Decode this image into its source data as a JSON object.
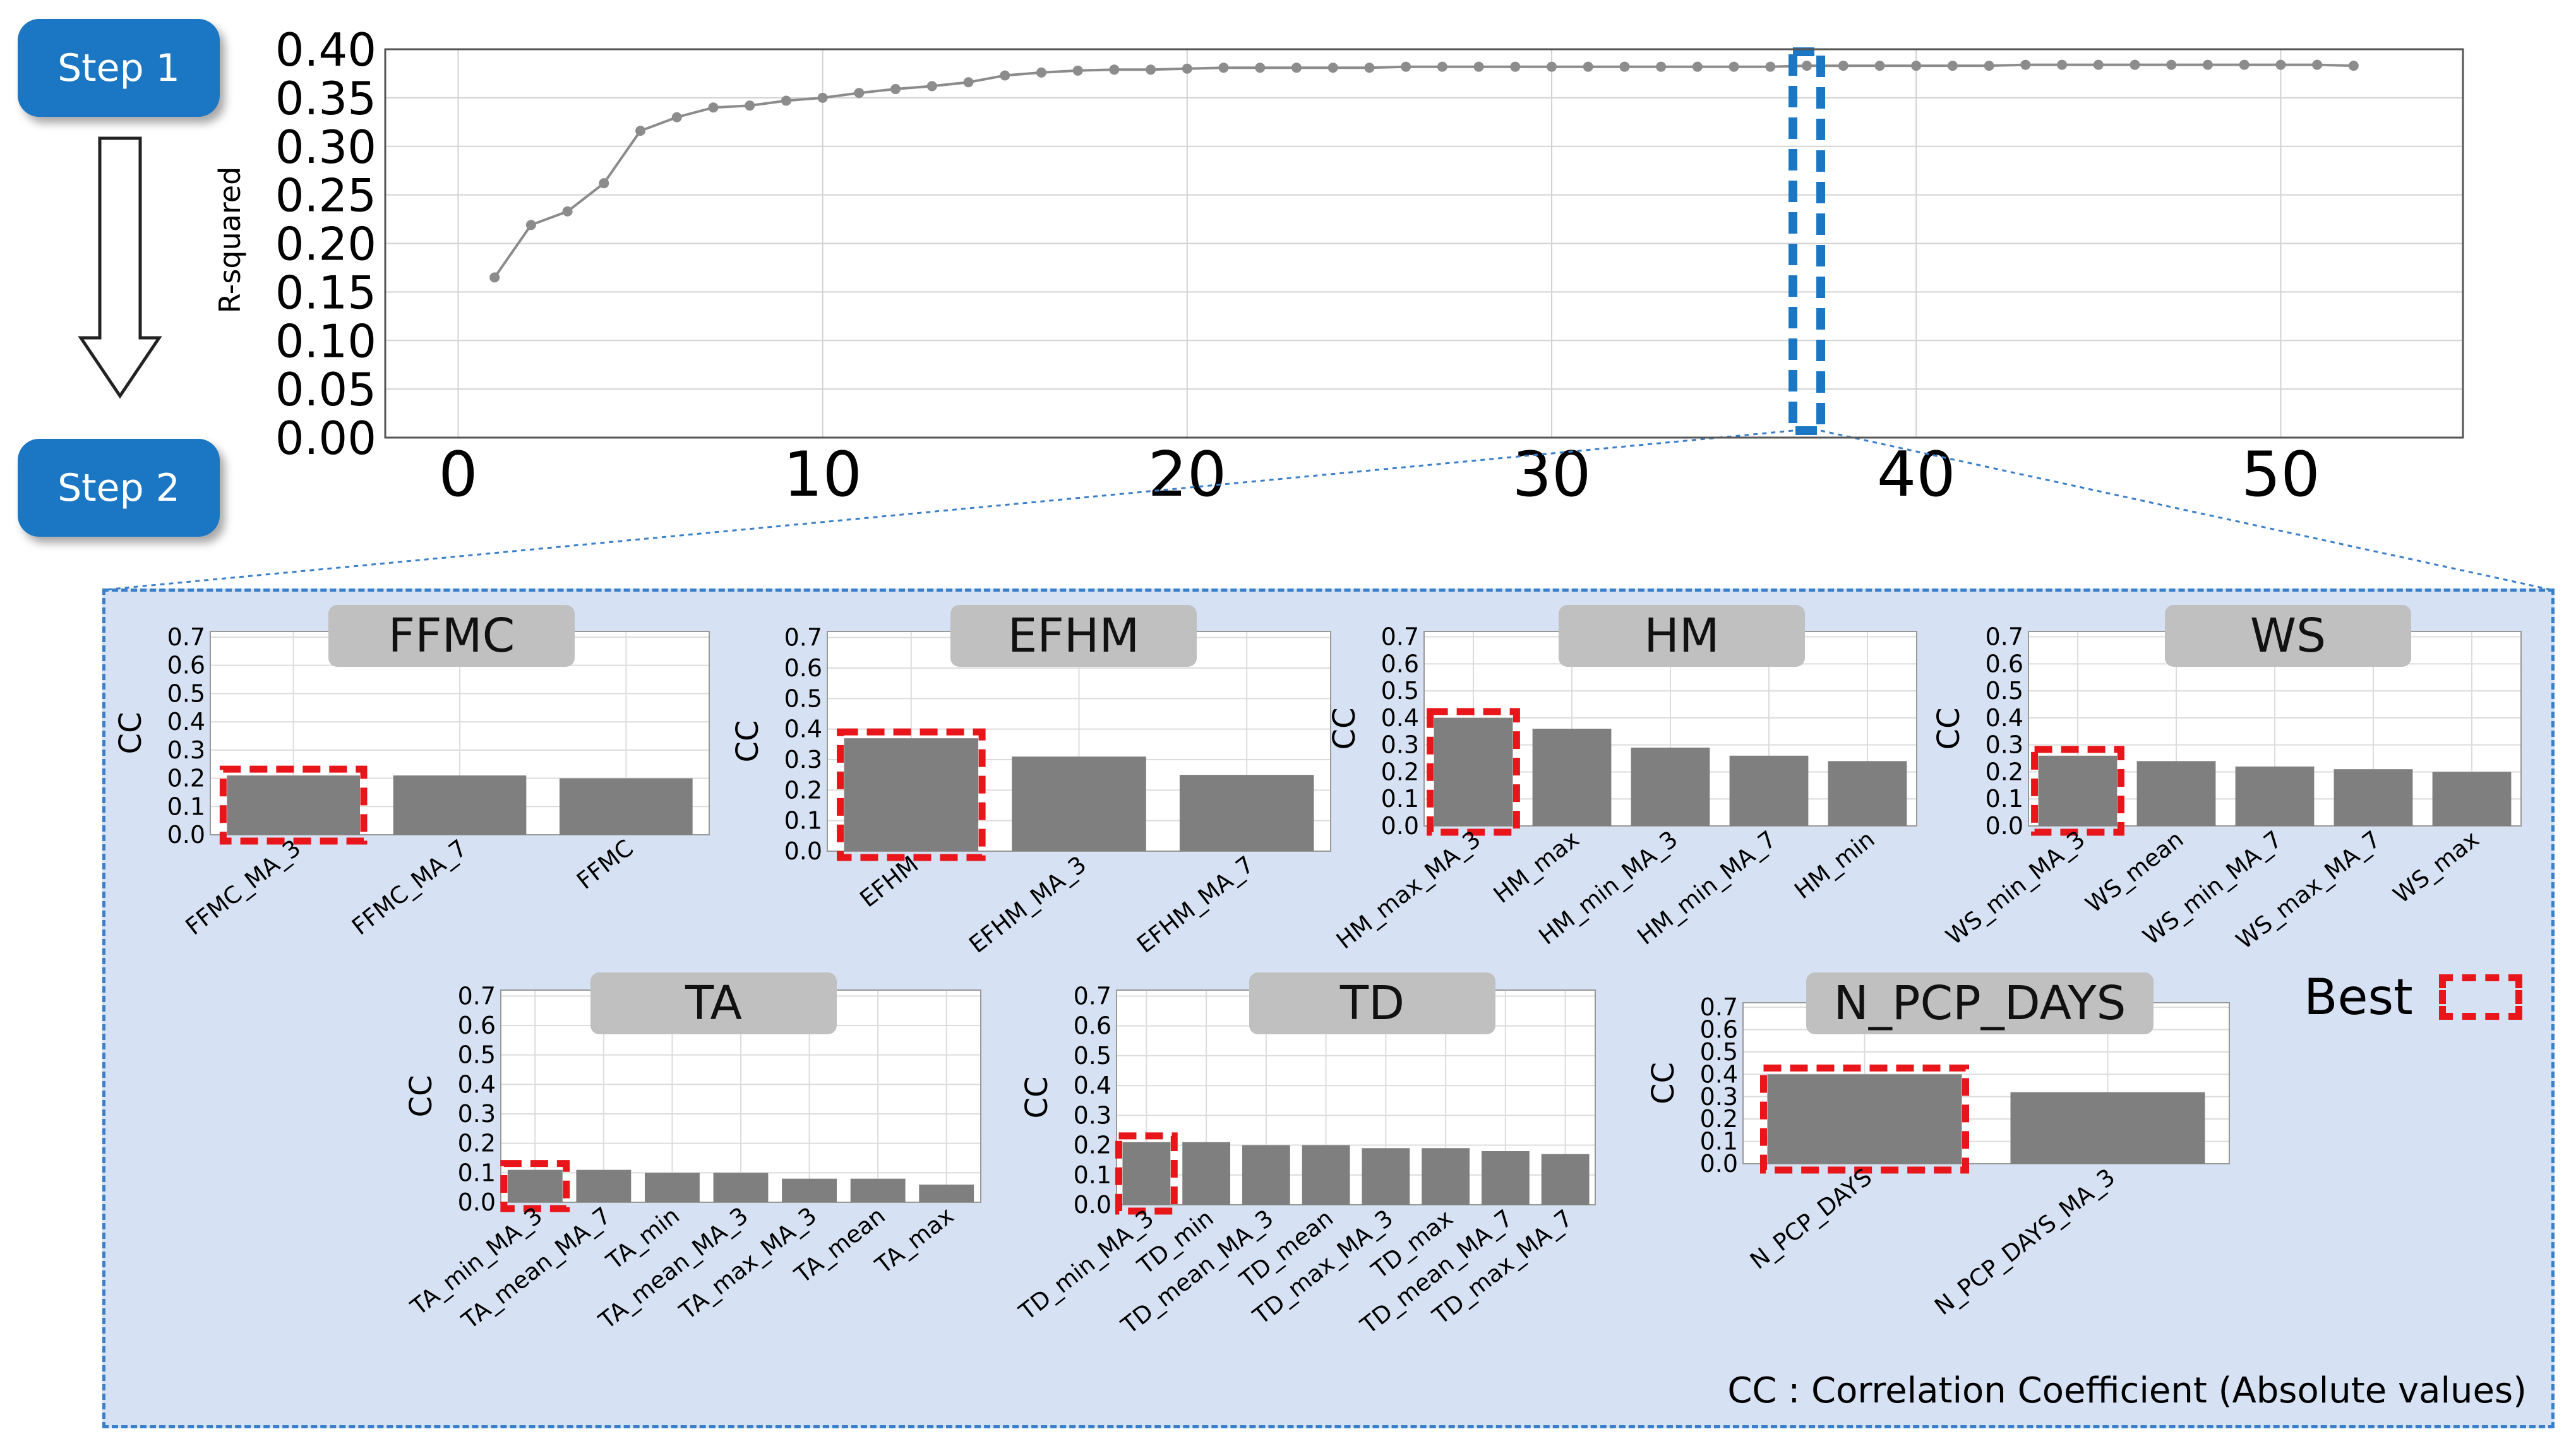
{
  "steps": {
    "step1": "Step 1",
    "step2": "Step 2"
  },
  "legend": {
    "best_label": "Best",
    "best_color": "#e8161b"
  },
  "note": "CC : Correlation Coefficient (Absolute values)",
  "colors": {
    "bar": "#7f7f7f",
    "line": "#8c8c8c",
    "step": "#1b76c4",
    "panel": "#d6e2f3",
    "highlight": "#1b76c4",
    "best": "#e8161b"
  },
  "chart_data": [
    {
      "type": "line",
      "ylabel": "R-squared",
      "xlim": [
        -2,
        55
      ],
      "ylim": [
        0,
        0.4
      ],
      "xticks": [
        0,
        10,
        20,
        30,
        40,
        50
      ],
      "yticks": [
        0.0,
        0.05,
        0.1,
        0.15,
        0.2,
        0.25,
        0.3,
        0.35,
        0.4
      ],
      "grid": true,
      "highlight_x": 37,
      "x": [
        1,
        2,
        3,
        4,
        5,
        6,
        7,
        8,
        9,
        10,
        11,
        12,
        13,
        14,
        15,
        16,
        17,
        18,
        19,
        20,
        21,
        22,
        23,
        24,
        25,
        26,
        27,
        28,
        29,
        30,
        31,
        32,
        33,
        34,
        35,
        36,
        37,
        38,
        39,
        40,
        41,
        42,
        43,
        44,
        45,
        46,
        47,
        48,
        49,
        50,
        51,
        52
      ],
      "y": [
        0.165,
        0.219,
        0.233,
        0.262,
        0.316,
        0.33,
        0.34,
        0.342,
        0.347,
        0.35,
        0.355,
        0.359,
        0.362,
        0.366,
        0.373,
        0.376,
        0.378,
        0.379,
        0.379,
        0.38,
        0.381,
        0.381,
        0.381,
        0.381,
        0.381,
        0.382,
        0.382,
        0.382,
        0.382,
        0.382,
        0.382,
        0.382,
        0.382,
        0.382,
        0.382,
        0.382,
        0.383,
        0.383,
        0.383,
        0.383,
        0.383,
        0.383,
        0.384,
        0.384,
        0.384,
        0.384,
        0.384,
        0.384,
        0.384,
        0.384,
        0.384,
        0.383
      ]
    },
    {
      "type": "bar",
      "title": "FFMC",
      "ylabel": "CC",
      "ylim": [
        0,
        0.7
      ],
      "categories": [
        "FFMC_MA_3",
        "FFMC_MA_7",
        "FFMC"
      ],
      "values": [
        0.21,
        0.21,
        0.2
      ],
      "best_index": 0
    },
    {
      "type": "bar",
      "title": "EFHM",
      "ylabel": "CC",
      "ylim": [
        0,
        0.7
      ],
      "categories": [
        "EFHM",
        "EFHM_MA_3",
        "EFHM_MA_7"
      ],
      "values": [
        0.37,
        0.31,
        0.25
      ],
      "best_index": 0
    },
    {
      "type": "bar",
      "title": "HM",
      "ylabel": "CC",
      "ylim": [
        0,
        0.7
      ],
      "categories": [
        "HM_max_MA_3",
        "HM_max",
        "HM_min_MA_3",
        "HM_min_MA_7",
        "HM_min"
      ],
      "values": [
        0.4,
        0.36,
        0.29,
        0.26,
        0.24
      ],
      "best_index": 0
    },
    {
      "type": "bar",
      "title": "WS",
      "ylabel": "CC",
      "ylim": [
        0,
        0.7
      ],
      "categories": [
        "WS_min_MA_3",
        "WS_mean",
        "WS_min_MA_7",
        "WS_max_MA_7",
        "WS_max"
      ],
      "values": [
        0.26,
        0.24,
        0.22,
        0.21,
        0.2
      ],
      "best_index": 0
    },
    {
      "type": "bar",
      "title": "TA",
      "ylabel": "CC",
      "ylim": [
        0,
        0.7
      ],
      "categories": [
        "TA_min_MA_3",
        "TA_mean_MA_7",
        "TA_min",
        "TA_mean_MA_3",
        "TA_max_MA_3",
        "TA_mean",
        "TA_max"
      ],
      "values": [
        0.11,
        0.11,
        0.1,
        0.1,
        0.08,
        0.08,
        0.06
      ],
      "best_index": 0
    },
    {
      "type": "bar",
      "title": "TD",
      "ylabel": "CC",
      "ylim": [
        0,
        0.7
      ],
      "categories": [
        "TD_min_MA_3",
        "TD_min",
        "TD_mean_MA_3",
        "TD_mean",
        "TD_max_MA_3",
        "TD_max",
        "TD_mean_MA_7",
        "TD_max_MA_7"
      ],
      "values": [
        0.21,
        0.21,
        0.2,
        0.2,
        0.19,
        0.19,
        0.18,
        0.17
      ],
      "best_index": 0
    },
    {
      "type": "bar",
      "title": "N_PCP_DAYS",
      "ylabel": "CC",
      "ylim": [
        0,
        0.7
      ],
      "categories": [
        "N_PCP_DAYS",
        "N_PCP_DAYS_MA_3"
      ],
      "values": [
        0.4,
        0.32
      ],
      "best_index": 0
    }
  ]
}
